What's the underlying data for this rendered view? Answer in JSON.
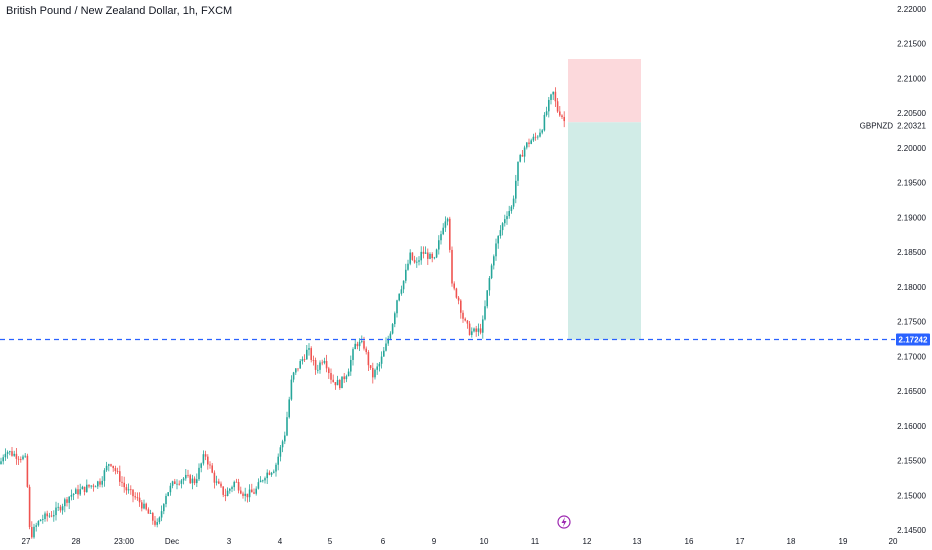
{
  "header": {
    "title": "British Pound / New Zealand Dollar, 1h, FXCM"
  },
  "colors": {
    "up": "#26a69a",
    "down": "#ef5350",
    "line": "#2962ff",
    "stop_zone": "#fcd9dc",
    "target_zone": "#d1ece7",
    "event_icon": "#9c27b0"
  },
  "icons": {
    "event": "lightning-icon"
  },
  "chart_data": {
    "type": "candlestick",
    "symbol": "GBPNZD",
    "interval": "1h",
    "y_axis_ticks": [
      "2.22000",
      "2.21500",
      "2.21000",
      "2.20500",
      "2.20000",
      "2.19500",
      "2.19000",
      "2.18500",
      "2.18000",
      "2.17500",
      "2.17000",
      "2.16500",
      "2.16000",
      "2.15500",
      "2.15000",
      "2.14500"
    ],
    "ylim": [
      2.1443,
      2.2214
    ],
    "x_axis_ticks": [
      "27",
      "28",
      "23:00",
      "Dec",
      "3",
      "4",
      "5",
      "6",
      "9",
      "10",
      "11",
      "12",
      "13",
      "16",
      "17",
      "18",
      "19",
      "20"
    ],
    "last_price": {
      "label": "GBPNZD",
      "value": "2.20321"
    },
    "horizontal_line": {
      "value": "2.17242",
      "style": "dashed"
    },
    "position_box": {
      "entry": 2.2037,
      "stop": 2.2128,
      "target": 2.1724,
      "type": "short"
    },
    "price_path": [
      [
        0,
        2.1545
      ],
      [
        5,
        2.1565
      ],
      [
        12,
        2.156
      ],
      [
        22,
        2.1555
      ],
      [
        26,
        2.155
      ],
      [
        30,
        2.144
      ],
      [
        40,
        2.1465
      ],
      [
        55,
        2.1475
      ],
      [
        70,
        2.15
      ],
      [
        85,
        2.151
      ],
      [
        100,
        2.152
      ],
      [
        110,
        2.155
      ],
      [
        125,
        2.151
      ],
      [
        140,
        2.149
      ],
      [
        150,
        2.147
      ],
      [
        158,
        2.1455
      ],
      [
        165,
        2.15
      ],
      [
        175,
        2.152
      ],
      [
        185,
        2.1525
      ],
      [
        195,
        2.152
      ],
      [
        205,
        2.156
      ],
      [
        215,
        2.152
      ],
      [
        225,
        2.15
      ],
      [
        235,
        2.152
      ],
      [
        245,
        2.15
      ],
      [
        255,
        2.1505
      ],
      [
        265,
        2.153
      ],
      [
        275,
        2.154
      ],
      [
        285,
        2.159
      ],
      [
        292,
        2.167
      ],
      [
        300,
        2.169
      ],
      [
        308,
        2.171
      ],
      [
        316,
        2.168
      ],
      [
        324,
        2.17
      ],
      [
        332,
        2.1665
      ],
      [
        340,
        2.166
      ],
      [
        348,
        2.168
      ],
      [
        356,
        2.172
      ],
      [
        364,
        2.1715
      ],
      [
        372,
        2.167
      ],
      [
        380,
        2.169
      ],
      [
        386,
        2.1715
      ],
      [
        392,
        2.1745
      ],
      [
        398,
        2.179
      ],
      [
        404,
        2.181
      ],
      [
        410,
        2.1845
      ],
      [
        416,
        2.183
      ],
      [
        422,
        2.185
      ],
      [
        428,
        2.1845
      ],
      [
        434,
        2.1835
      ],
      [
        440,
        2.187
      ],
      [
        444,
        2.1895
      ],
      [
        448,
        2.1905
      ],
      [
        452,
        2.18
      ],
      [
        458,
        2.1785
      ],
      [
        464,
        2.175
      ],
      [
        470,
        2.1735
      ],
      [
        476,
        2.1735
      ],
      [
        482,
        2.174
      ],
      [
        488,
        2.18
      ],
      [
        494,
        2.185
      ],
      [
        500,
        2.188
      ],
      [
        506,
        2.1905
      ],
      [
        512,
        2.1915
      ],
      [
        518,
        2.1975
      ],
      [
        524,
        2.2
      ],
      [
        530,
        2.201
      ],
      [
        536,
        2.2015
      ],
      [
        542,
        2.203
      ],
      [
        548,
        2.206
      ],
      [
        553,
        2.208
      ],
      [
        557,
        2.2055
      ],
      [
        561,
        2.205
      ],
      [
        566,
        2.2032
      ]
    ]
  }
}
